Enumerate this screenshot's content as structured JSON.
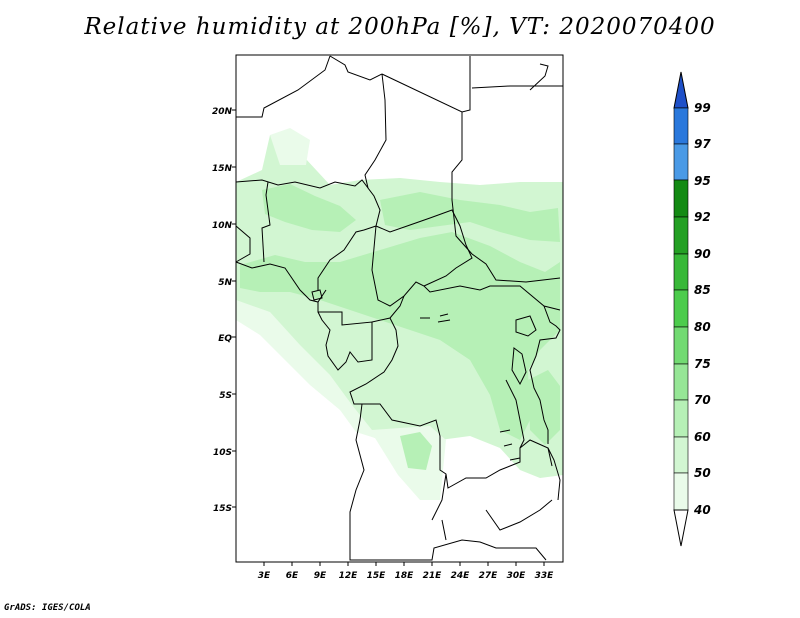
{
  "header": {
    "title": "Relative humidity at 200hPa [%], VT: 2020070400"
  },
  "footer": {
    "credit": "GrADS: IGES/COLA"
  },
  "map": {
    "variable": "Relative humidity",
    "level": "200hPa",
    "units": "%",
    "valid_time": "2020070400",
    "lon_labels": [
      "3E",
      "6E",
      "9E",
      "12E",
      "15E",
      "18E",
      "21E",
      "24E",
      "27E",
      "30E",
      "33E"
    ],
    "lat_labels": [
      "20N",
      "15N",
      "10N",
      "5N",
      "EQ",
      "5S",
      "10S",
      "15S"
    ],
    "projection": "latlon",
    "region": "Central Africa"
  },
  "legend": {
    "levels": [
      "99",
      "97",
      "95",
      "92",
      "90",
      "85",
      "80",
      "75",
      "70",
      "60",
      "50",
      "40"
    ],
    "colors": {
      "above_99": "#1e50c8",
      "97_99": "#2a78dc",
      "95_97": "#4a9ae6",
      "92_95": "#138a13",
      "90_92": "#24a024",
      "85_90": "#38b838",
      "80_85": "#4ccc4c",
      "75_80": "#72da72",
      "70_75": "#96e696",
      "60_70": "#b6f0b6",
      "50_60": "#d2f6d2",
      "40_50": "#eafbea",
      "below_40": "#ffffff"
    }
  }
}
